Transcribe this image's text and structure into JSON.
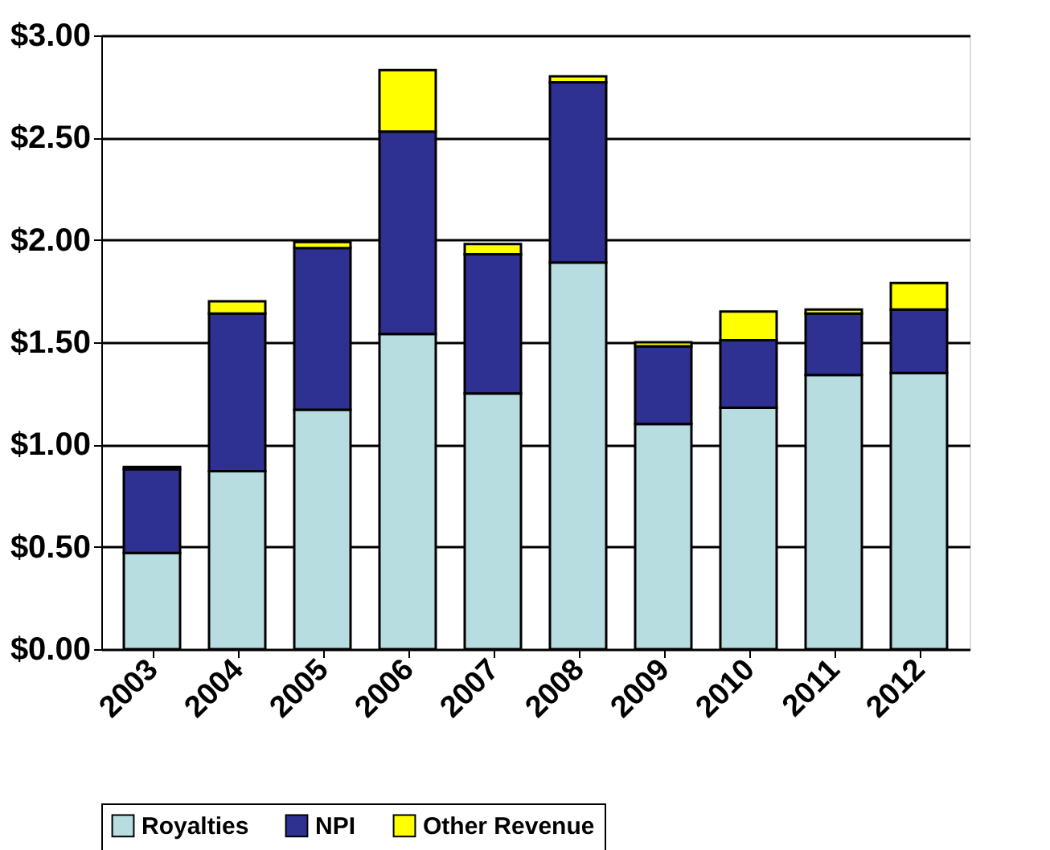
{
  "chart_data": {
    "type": "bar",
    "stacked": true,
    "categories": [
      "2003",
      "2004",
      "2005",
      "2006",
      "2007",
      "2008",
      "2009",
      "2010",
      "2011",
      "2012"
    ],
    "series": [
      {
        "name": "Royalties",
        "color": "#b7dde0",
        "values": [
          0.47,
          0.87,
          1.17,
          1.54,
          1.25,
          1.89,
          1.1,
          1.18,
          1.34,
          1.35
        ]
      },
      {
        "name": "NPI",
        "color": "#2e3192",
        "values": [
          0.41,
          0.77,
          0.79,
          0.99,
          0.68,
          0.88,
          0.38,
          0.33,
          0.3,
          0.31
        ]
      },
      {
        "name": "Other Revenue",
        "color": "#ffff00",
        "values": [
          0.01,
          0.06,
          0.03,
          0.3,
          0.05,
          0.03,
          0.02,
          0.14,
          0.02,
          0.13
        ]
      }
    ],
    "ylim": [
      0,
      3
    ],
    "yticks": [
      {
        "value": 0,
        "label": "$0.00"
      },
      {
        "value": 0.5,
        "label": "$0.50"
      },
      {
        "value": 1,
        "label": "$1.00"
      },
      {
        "value": 1.5,
        "label": "$1.50"
      },
      {
        "value": 2,
        "label": "$2.00"
      },
      {
        "value": 2.5,
        "label": "$2.50"
      },
      {
        "value": 3,
        "label": "$3.00"
      }
    ],
    "grid": "y",
    "legend": "bottom"
  }
}
